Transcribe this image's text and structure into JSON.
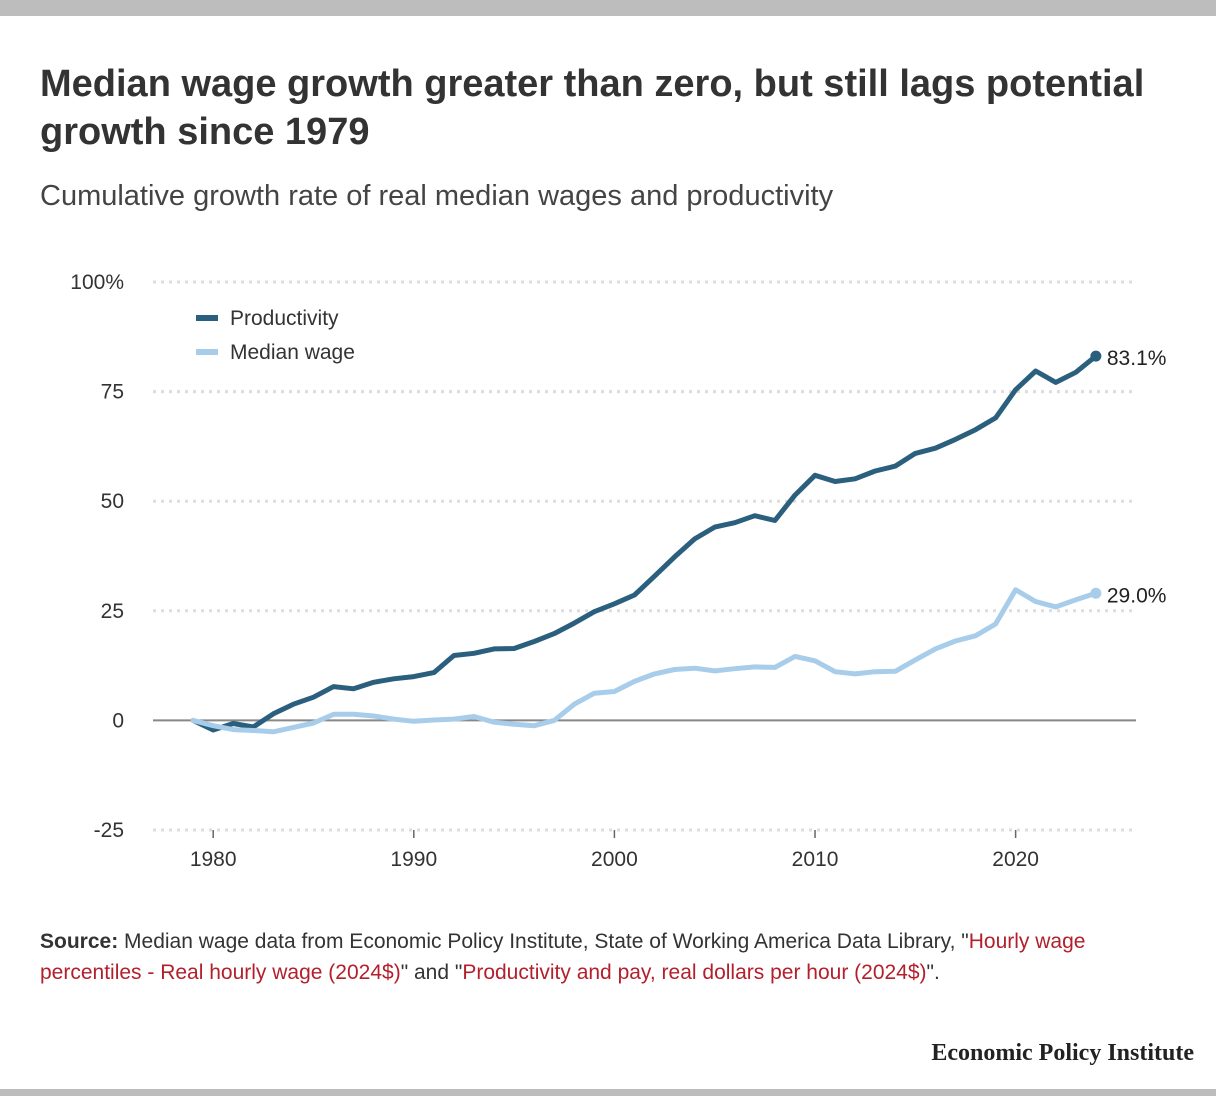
{
  "header": {
    "title": "Median wage growth greater than zero, but still lags potential growth since 1979",
    "subtitle": "Cumulative growth rate of real median wages and productivity"
  },
  "chart_data": {
    "type": "line",
    "x": [
      1979,
      1980,
      1981,
      1982,
      1983,
      1984,
      1985,
      1986,
      1987,
      1988,
      1989,
      1990,
      1991,
      1992,
      1993,
      1994,
      1995,
      1996,
      1997,
      1998,
      1999,
      2000,
      2001,
      2002,
      2003,
      2004,
      2005,
      2006,
      2007,
      2008,
      2009,
      2010,
      2011,
      2012,
      2013,
      2014,
      2015,
      2016,
      2017,
      2018,
      2019,
      2020,
      2021,
      2022,
      2023,
      2024
    ],
    "series": [
      {
        "name": "Productivity",
        "color": "#2b5f7e",
        "values": [
          0,
          -2.2,
          -0.7,
          -1.5,
          1.5,
          3.7,
          5.3,
          7.7,
          7.2,
          8.7,
          9.5,
          10,
          10.9,
          14.8,
          15.3,
          16.3,
          16.4,
          18,
          19.8,
          22.2,
          24.8,
          26.6,
          28.6,
          32.9,
          37.3,
          41.4,
          44.1,
          45.1,
          46.7,
          45.6,
          51.4,
          55.9,
          54.5,
          55.1,
          56.9,
          58,
          60.9,
          62.1,
          64.1,
          66.3,
          69,
          75.4,
          79.7,
          77.1,
          79.4,
          83.1
        ],
        "end_label": "83.1%"
      },
      {
        "name": "Median wage",
        "color": "#a7cdea",
        "values": [
          0,
          -1.2,
          -2.1,
          -2.3,
          -2.6,
          -1.6,
          -0.6,
          1.4,
          1.4,
          1,
          0.3,
          -0.2,
          0.1,
          0.3,
          0.9,
          -0.4,
          -0.9,
          -1.2,
          0,
          3.7,
          6.2,
          6.6,
          8.9,
          10.6,
          11.6,
          11.9,
          11.3,
          11.8,
          12.2,
          12.1,
          14.6,
          13.6,
          11.1,
          10.6,
          11.1,
          11.2,
          13.8,
          16.3,
          18.1,
          19.3,
          22,
          29.8,
          27.1,
          25.9,
          27.5,
          29.0
        ],
        "end_label": "29.0%"
      }
    ],
    "xlim": [
      1977,
      2026
    ],
    "ylim": [
      -25,
      100
    ],
    "x_ticks": [
      1980,
      1990,
      2000,
      2010,
      2020
    ],
    "y_ticks": [
      {
        "value": 100,
        "label": "100%"
      },
      {
        "value": 75,
        "label": "75"
      },
      {
        "value": 50,
        "label": "50"
      },
      {
        "value": 25,
        "label": "25"
      },
      {
        "value": 0,
        "label": "0"
      },
      {
        "value": -25,
        "label": "-25"
      }
    ],
    "legend": {
      "position": "top-left",
      "items": [
        {
          "label": "Productivity",
          "color": "#2b5f7e"
        },
        {
          "label": "Median wage",
          "color": "#a7cdea"
        }
      ]
    },
    "grid": "horizontal dotted",
    "zero_line": true
  },
  "footer": {
    "source_label": "Source:",
    "source_text": " Median wage data from Economic Policy Institute, State of Working America Data Library, \"",
    "link1": "Hourly wage percentiles - Real hourly wage (2024$)",
    "between": "\" and \"",
    "link2": "Productivity and pay, real dollars per hour (2024$)",
    "after": "\".",
    "brand": "Economic Policy Institute"
  },
  "colors": {
    "productivity": "#2b5f7e",
    "median_wage": "#a7cdea",
    "source_link": "#b31f2b",
    "gridline": "#dddddd",
    "zero_line": "#888888"
  }
}
